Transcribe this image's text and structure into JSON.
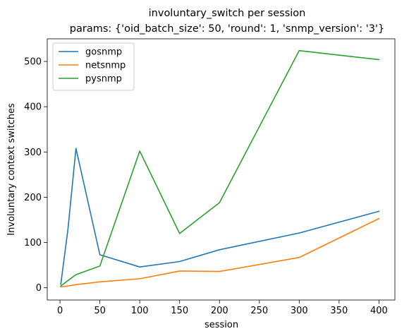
{
  "chart_data": {
    "type": "line",
    "title": "involuntary_switch per session",
    "subtitle": "params: {'oid_batch_size': 50, 'round': 1, 'snmp_version': '3'}",
    "xlabel": "session",
    "ylabel": "Involuntary context switches",
    "xlim": [
      -16,
      420
    ],
    "ylim": [
      -27,
      550
    ],
    "xticks": [
      0,
      50,
      100,
      150,
      200,
      250,
      300,
      350,
      400
    ],
    "yticks": [
      0,
      100,
      200,
      300,
      400,
      500
    ],
    "legend_position": "top-left",
    "grid": false,
    "series": [
      {
        "name": "gosnmp",
        "color": "#1f77b4",
        "x": [
          1,
          10,
          20,
          50,
          100,
          150,
          200,
          300,
          400
        ],
        "y": [
          8,
          130,
          308,
          73,
          46,
          58,
          84,
          121,
          169
        ]
      },
      {
        "name": "netsnmp",
        "color": "#ff7f0e",
        "x": [
          1,
          10,
          20,
          50,
          100,
          150,
          200,
          300,
          400
        ],
        "y": [
          2,
          4,
          7,
          13,
          20,
          37,
          36,
          67,
          153
        ]
      },
      {
        "name": "pysnmp",
        "color": "#2ca02c",
        "x": [
          1,
          10,
          20,
          50,
          100,
          150,
          200,
          300,
          400
        ],
        "y": [
          4,
          16,
          29,
          48,
          302,
          120,
          188,
          524,
          504
        ]
      }
    ]
  }
}
